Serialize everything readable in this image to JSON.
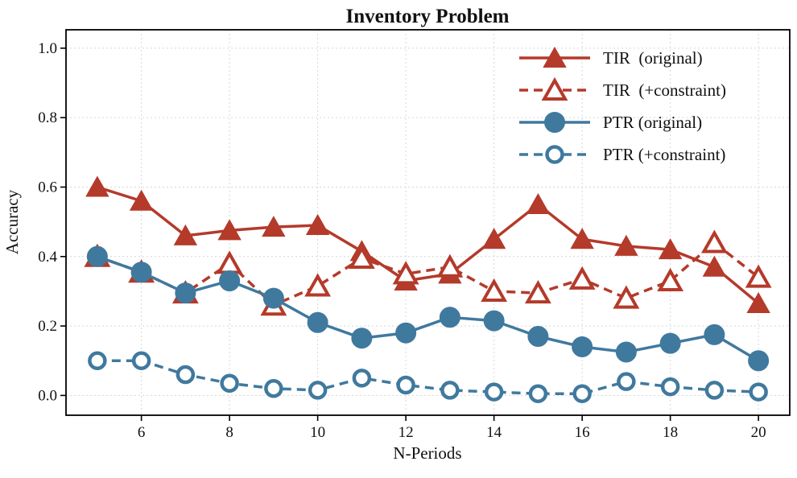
{
  "chart_data": {
    "type": "line",
    "title": "Inventory Problem",
    "xlabel": "N-Periods",
    "ylabel": "Accuracy",
    "grid": true,
    "legend_position": "upper right",
    "xlim": [
      4.29,
      20.71
    ],
    "ylim": [
      -0.057,
      1.053
    ],
    "xticks": [
      6,
      8,
      10,
      12,
      14,
      16,
      18,
      20
    ],
    "xtick_labels": [
      "6",
      "8",
      "10",
      "12",
      "14",
      "16",
      "18",
      "20"
    ],
    "yticks": [
      0.0,
      0.2,
      0.4,
      0.6,
      0.8,
      1.0
    ],
    "ytick_labels": [
      "0.0",
      "0.2",
      "0.4",
      "0.6",
      "0.8",
      "1.0"
    ],
    "x": [
      5,
      6,
      7,
      8,
      9,
      10,
      11,
      12,
      13,
      14,
      15,
      16,
      17,
      18,
      19,
      20
    ],
    "series": [
      {
        "name": "TIR  (original)",
        "color": "#b43a2a",
        "line": "solid",
        "marker": "triangle",
        "filled": true,
        "values": [
          0.6,
          0.56,
          0.46,
          0.475,
          0.485,
          0.49,
          0.415,
          0.33,
          0.35,
          0.45,
          0.55,
          0.45,
          0.43,
          0.42,
          0.37,
          0.265
        ]
      },
      {
        "name": "TIR  (+constraint)",
        "color": "#b43a2a",
        "line": "dashed",
        "marker": "triangle",
        "filled": false,
        "values": [
          0.4,
          0.355,
          0.295,
          0.38,
          0.26,
          0.315,
          0.395,
          0.35,
          0.37,
          0.3,
          0.295,
          0.335,
          0.28,
          0.33,
          0.44,
          0.34
        ]
      },
      {
        "name": "PTR (original)",
        "color": "#40799e",
        "line": "solid",
        "marker": "circle",
        "filled": true,
        "values": [
          0.4,
          0.355,
          0.295,
          0.33,
          0.28,
          0.21,
          0.165,
          0.18,
          0.225,
          0.215,
          0.17,
          0.14,
          0.125,
          0.15,
          0.175,
          0.1
        ]
      },
      {
        "name": "PTR (+constraint)",
        "color": "#40799e",
        "line": "dashed",
        "marker": "circle",
        "filled": false,
        "values": [
          0.1,
          0.1,
          0.06,
          0.035,
          0.02,
          0.015,
          0.05,
          0.03,
          0.015,
          0.01,
          0.005,
          0.005,
          0.04,
          0.025,
          0.015,
          0.01
        ]
      }
    ],
    "colors": {
      "grid": "#d6d6d6",
      "spine": "#000000",
      "marker_face_open": "#ffffff"
    }
  }
}
